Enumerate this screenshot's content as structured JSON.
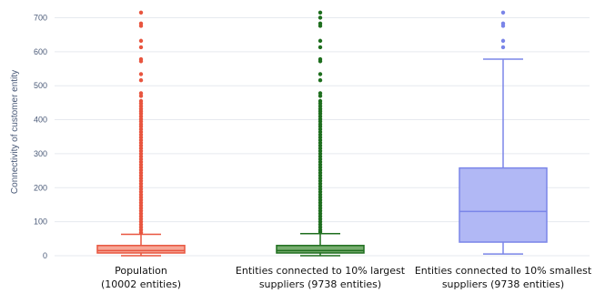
{
  "chart_data": {
    "type": "box",
    "ylabel": "Connectivity of customer entity",
    "ylim": [
      0,
      720
    ],
    "yticks": [
      0,
      100,
      200,
      300,
      400,
      500,
      600,
      700
    ],
    "grid": true,
    "series": [
      {
        "label_lines": [
          "Population",
          "(10002 entities)"
        ],
        "color": "#e8553f",
        "fill": "#f6a797",
        "stats": {
          "min": 0,
          "q1": 8,
          "median": 15,
          "q3": 30,
          "max": 63
        },
        "outliers": [
          715,
          683,
          676,
          632,
          613,
          578,
          572,
          534,
          516,
          478,
          470,
          455,
          448,
          440,
          432,
          425,
          418,
          410,
          402,
          395,
          387,
          380,
          372,
          364,
          356,
          348,
          340,
          332,
          324,
          316,
          308,
          300,
          292,
          284,
          276,
          268,
          260,
          252,
          244,
          236,
          228,
          220,
          212,
          204,
          196,
          188,
          180,
          172,
          164,
          156,
          148,
          140,
          132,
          124,
          116,
          108,
          100,
          92,
          84,
          76,
          68
        ]
      },
      {
        "label_lines": [
          "Entities connected to 10% largest",
          "suppliers (9738 entities)"
        ],
        "color": "#1e6e1e",
        "fill": "#77ad6f",
        "stats": {
          "min": 0,
          "q1": 8,
          "median": 15,
          "q3": 30,
          "max": 65
        },
        "outliers": [
          715,
          700,
          683,
          676,
          632,
          613,
          578,
          572,
          534,
          516,
          478,
          470,
          455,
          448,
          440,
          432,
          425,
          418,
          410,
          402,
          395,
          387,
          380,
          372,
          364,
          356,
          348,
          340,
          332,
          324,
          316,
          308,
          300,
          292,
          284,
          276,
          268,
          260,
          252,
          244,
          236,
          228,
          220,
          212,
          204,
          196,
          188,
          180,
          172,
          164,
          156,
          148,
          140,
          132,
          124,
          116,
          108,
          100,
          92,
          84,
          76,
          70
        ]
      },
      {
        "label_lines": [
          "Entities connected to 10% smallest",
          "suppliers (9738 entities)"
        ],
        "color": "#7a85e8",
        "fill": "#b1b8f5",
        "stats": {
          "min": 5,
          "q1": 40,
          "median": 130,
          "q3": 258,
          "max": 578
        },
        "outliers": [
          715,
          683,
          676,
          632,
          613
        ]
      }
    ]
  }
}
